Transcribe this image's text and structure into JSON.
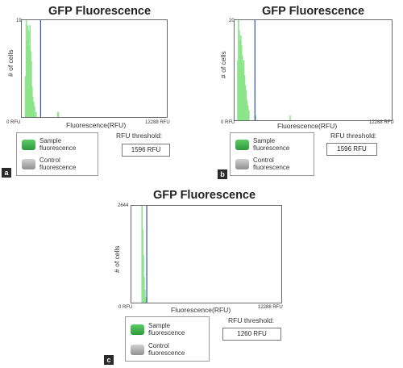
{
  "colors": {
    "sample_swatch": "#3aaa4a",
    "control_swatch": "#a6a6a6",
    "histogram_bar": "#8ee48a",
    "threshold_line": "#3c5bbf",
    "panel_tag_bg": "#2a2a2a"
  },
  "panels": [
    {
      "tag": "a",
      "title": "GFP Fluorescence",
      "y_axis_label": "# of cells",
      "y_max_label": "19",
      "x_min_label": "0 RFU",
      "x_max_label": "12288 RFU",
      "x_axis_label": "Fluorescence(RFU)",
      "legend_sample": "Sample fluorescence",
      "legend_control": "Control fluorescence",
      "threshold_label": "RFU threshold:",
      "threshold_value": "1596 RFU"
    },
    {
      "tag": "b",
      "title": "GFP Fluorescence",
      "y_axis_label": "# of cells",
      "y_max_label": "20",
      "x_min_label": "0 RFU",
      "x_max_label": "12288 RFU",
      "x_axis_label": "Fluorescence(RFU)",
      "legend_sample": "Sample fluorescence",
      "legend_control": "Control fluorescence",
      "threshold_label": "RFU threshold:",
      "threshold_value": "1596 RFU"
    },
    {
      "tag": "c",
      "title": "GFP Fluorescence",
      "y_axis_label": "# of cells",
      "y_max_label": "2644",
      "x_min_label": "0 RFU",
      "x_max_label": "12288 RFU",
      "x_axis_label": "Fluorescence(RFU)",
      "legend_sample": "Sample fluorescence",
      "legend_control": "Control fluorescence",
      "threshold_label": "RFU threshold:",
      "threshold_value": "1260 RFU"
    }
  ],
  "chart_data": [
    {
      "type": "bar",
      "title": "GFP Fluorescence",
      "xlabel": "Fluorescence(RFU)",
      "ylabel": "# of cells",
      "xlim": [
        0,
        12288
      ],
      "ylim": [
        0,
        19
      ],
      "threshold": 1596,
      "threshold_line_color": "#3c5bbf",
      "bar_color": "#8ee48a",
      "x": [
        250,
        330,
        400,
        460,
        520,
        580,
        640,
        700,
        760,
        820,
        880,
        960,
        1040,
        1160,
        3000,
        3050
      ],
      "values": [
        8,
        19,
        15,
        18,
        17,
        14,
        18,
        13,
        11,
        6,
        4,
        3,
        2,
        1,
        1,
        1
      ]
    },
    {
      "type": "bar",
      "title": "GFP Fluorescence",
      "xlabel": "Fluorescence(RFU)",
      "ylabel": "# of cells",
      "xlim": [
        0,
        12288
      ],
      "ylim": [
        0,
        20
      ],
      "threshold": 1596,
      "threshold_line_color": "#3c5bbf",
      "bar_color": "#8ee48a",
      "x": [
        200,
        260,
        320,
        380,
        440,
        500,
        560,
        620,
        680,
        740,
        800,
        860,
        920,
        1000,
        1080,
        1600,
        4300
      ],
      "values": [
        12,
        20,
        18,
        16,
        17,
        15,
        13,
        11,
        12,
        9,
        7,
        6,
        4,
        3,
        2,
        1,
        1
      ]
    },
    {
      "type": "bar",
      "title": "GFP Fluorescence",
      "xlabel": "Fluorescence(RFU)",
      "ylabel": "# of cells",
      "xlim": [
        0,
        12288
      ],
      "ylim": [
        0,
        2644
      ],
      "threshold": 1260,
      "threshold_line_color": "#3c5bbf",
      "bar_color": "#8ee48a",
      "x": [
        820,
        880,
        940,
        1000,
        1060,
        1120,
        1180
      ],
      "values": [
        2644,
        2000,
        1300,
        700,
        350,
        150,
        60
      ]
    }
  ]
}
